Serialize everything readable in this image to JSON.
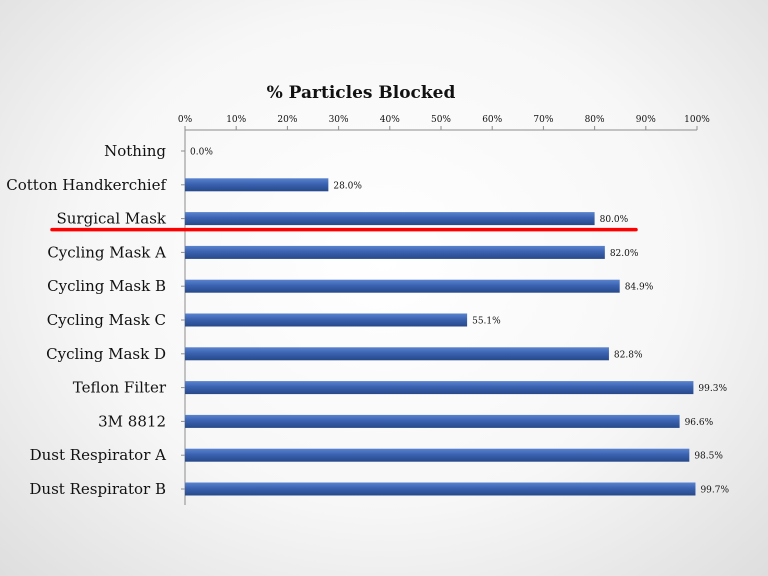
{
  "chart_data": {
    "type": "bar",
    "orientation": "horizontal",
    "title": "% Particles Blocked",
    "xlabel": "",
    "ylabel": "",
    "xlim": [
      0,
      100
    ],
    "x_ticks": [
      "0%",
      "10%",
      "20%",
      "30%",
      "40%",
      "50%",
      "60%",
      "70%",
      "80%",
      "90%",
      "100%"
    ],
    "x_axis_position": "top",
    "grid": false,
    "legend": "none",
    "categories": [
      "Nothing",
      "Cotton Handkerchief",
      "Surgical Mask",
      "Cycling Mask A",
      "Cycling Mask B",
      "Cycling Mask C",
      "Cycling Mask D",
      "Teflon Filter",
      "3M 8812",
      "Dust Respirator A",
      "Dust Respirator B"
    ],
    "values": [
      0.0,
      28.0,
      80.0,
      82.0,
      84.9,
      55.1,
      82.8,
      99.3,
      96.6,
      98.5,
      99.7
    ],
    "data_labels": [
      "0.0%",
      "28.0%",
      "80.0%",
      "82.0%",
      "84.9%",
      "55.1%",
      "82.8%",
      "99.3%",
      "96.6%",
      "98.5%",
      "99.7%"
    ],
    "bar_color": "#3a62b0",
    "highlight": {
      "category": "Surgical Mask",
      "style": "red-underline",
      "color": "#ff0000"
    }
  }
}
